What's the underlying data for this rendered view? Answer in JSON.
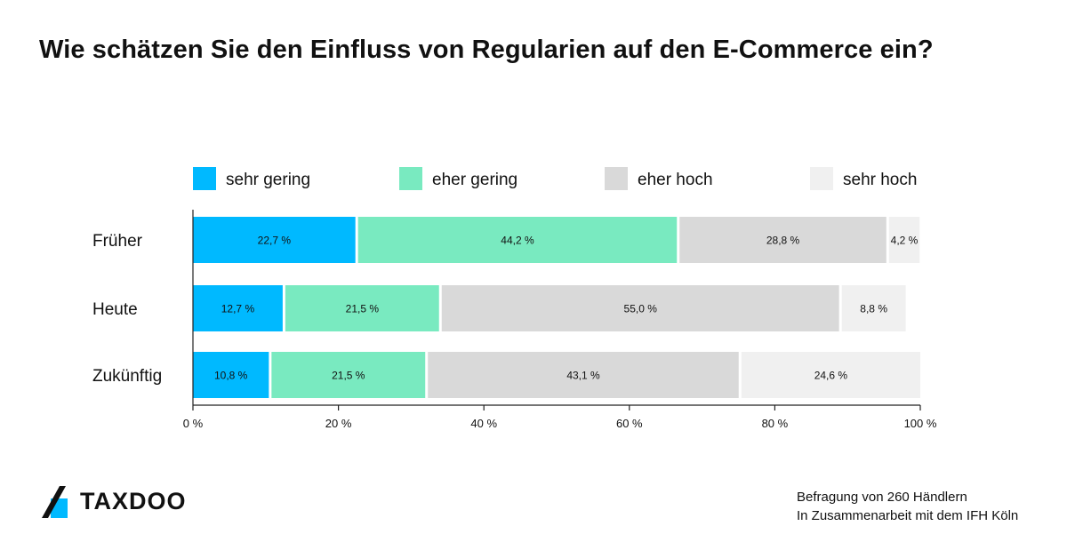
{
  "title": "Wie schätzen Sie den Einfluss von Regularien auf den E-Commerce ein?",
  "chart_data": {
    "type": "bar",
    "orientation": "horizontal",
    "stacked": true,
    "categories": [
      "Früher",
      "Heute",
      "Zukünftig"
    ],
    "series": [
      {
        "name": "sehr gering",
        "color": "#00b9ff",
        "values": [
          22.7,
          12.7,
          10.8
        ],
        "labels": [
          "22,7 %",
          "12,7 %",
          "10,8 %"
        ]
      },
      {
        "name": "eher gering",
        "color": "#79eac0",
        "values": [
          44.2,
          21.5,
          21.5
        ],
        "labels": [
          "44,2 %",
          "21,5 %",
          "21,5 %"
        ]
      },
      {
        "name": "eher hoch",
        "color": "#d9d9d9",
        "values": [
          28.8,
          55.0,
          43.1
        ],
        "labels": [
          "28,8 %",
          "55,0 %",
          "43,1 %"
        ]
      },
      {
        "name": "sehr hoch",
        "color": "#f0f0f0",
        "values": [
          4.2,
          8.8,
          24.6
        ],
        "labels": [
          "4,2 %",
          "8,8 %",
          "24,6 %"
        ]
      }
    ],
    "xlim": [
      0,
      100
    ],
    "xticks": [
      0,
      20,
      40,
      60,
      80,
      100
    ],
    "xtick_labels": [
      "0 %",
      "20 %",
      "40 %",
      "60 %",
      "80 %",
      "100 %"
    ],
    "legend_position": "top",
    "grid": false
  },
  "logo": {
    "text": "TAXDOO"
  },
  "footer": {
    "line1": "Befragung von 260 Händlern",
    "line2": "In Zusammenarbeit mit dem IFH Köln"
  }
}
